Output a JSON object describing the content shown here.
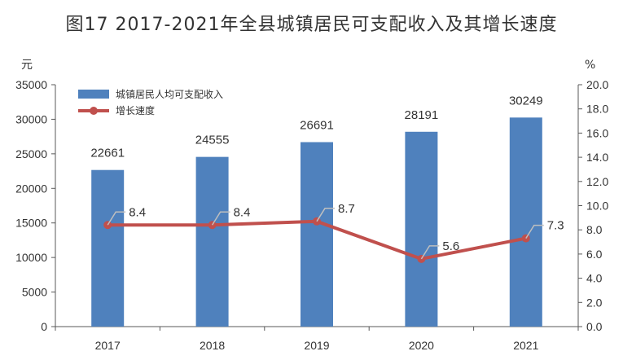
{
  "chart_data": {
    "type": "bar",
    "title": "图17  2017-2021年全县城镇居民可支配收入及其增长速度",
    "categories": [
      "2017",
      "2018",
      "2019",
      "2020",
      "2021"
    ],
    "series": [
      {
        "name": "城镇居民人均可支配收入",
        "kind": "bar",
        "axis": "left",
        "values": [
          22661,
          24555,
          26691,
          28191,
          30249
        ],
        "color": "#4f81bd"
      },
      {
        "name": "增长速度",
        "kind": "line",
        "axis": "right",
        "values": [
          8.4,
          8.4,
          8.7,
          5.6,
          7.3
        ],
        "color": "#c0504d"
      }
    ],
    "y_left": {
      "unit": "元",
      "range": [
        0,
        35000
      ],
      "ticks": [
        0,
        5000,
        10000,
        15000,
        20000,
        25000,
        30000,
        35000
      ]
    },
    "y_right": {
      "unit": "%",
      "range": [
        0,
        20
      ],
      "ticks": [
        "0.0",
        "2.0",
        "4.0",
        "6.0",
        "8.0",
        "10.0",
        "12.0",
        "14.0",
        "16.0",
        "18.0",
        "20.0"
      ]
    },
    "legend_position": "top-left",
    "grid": false
  }
}
